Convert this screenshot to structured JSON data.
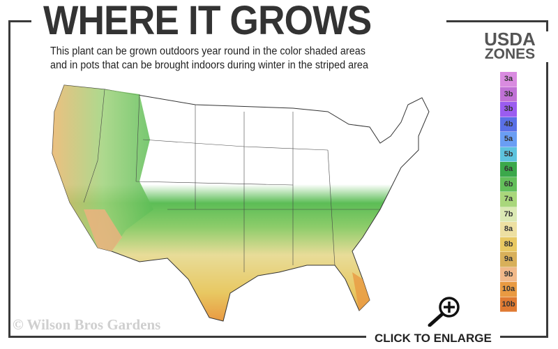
{
  "header": {
    "title": "WHERE IT GROWS",
    "subtitle_line1": "This plant can be grown outdoors year round in the color shaded areas",
    "subtitle_line2": "and in pots that can be brought indoors during winter in the striped area"
  },
  "legend": {
    "title_line1": "USDA",
    "title_line2": "ZONES",
    "zones": [
      {
        "label": "3a",
        "color": "#d98be0"
      },
      {
        "label": "3b",
        "color": "#c071d6"
      },
      {
        "label": "3b",
        "color": "#9b5cf0"
      },
      {
        "label": "4b",
        "color": "#5a70e6"
      },
      {
        "label": "5a",
        "color": "#6a9ef4"
      },
      {
        "label": "5b",
        "color": "#5ec3dd"
      },
      {
        "label": "6a",
        "color": "#3ba84b"
      },
      {
        "label": "6b",
        "color": "#63bf5a"
      },
      {
        "label": "7a",
        "color": "#a9d77b"
      },
      {
        "label": "7b",
        "color": "#dbe9b4"
      },
      {
        "label": "8a",
        "color": "#ede0a2"
      },
      {
        "label": "8b",
        "color": "#e8c862"
      },
      {
        "label": "9a",
        "color": "#d8b05a"
      },
      {
        "label": "9b",
        "color": "#f1b98a"
      },
      {
        "label": "10a",
        "color": "#e99a42"
      },
      {
        "label": "10b",
        "color": "#e07a32"
      }
    ]
  },
  "footer": {
    "copyright": "© Wilson Bros Gardens",
    "enlarge_label": "CLICK TO ENLARGE",
    "enlarge_icon": "magnifier-plus-icon"
  }
}
